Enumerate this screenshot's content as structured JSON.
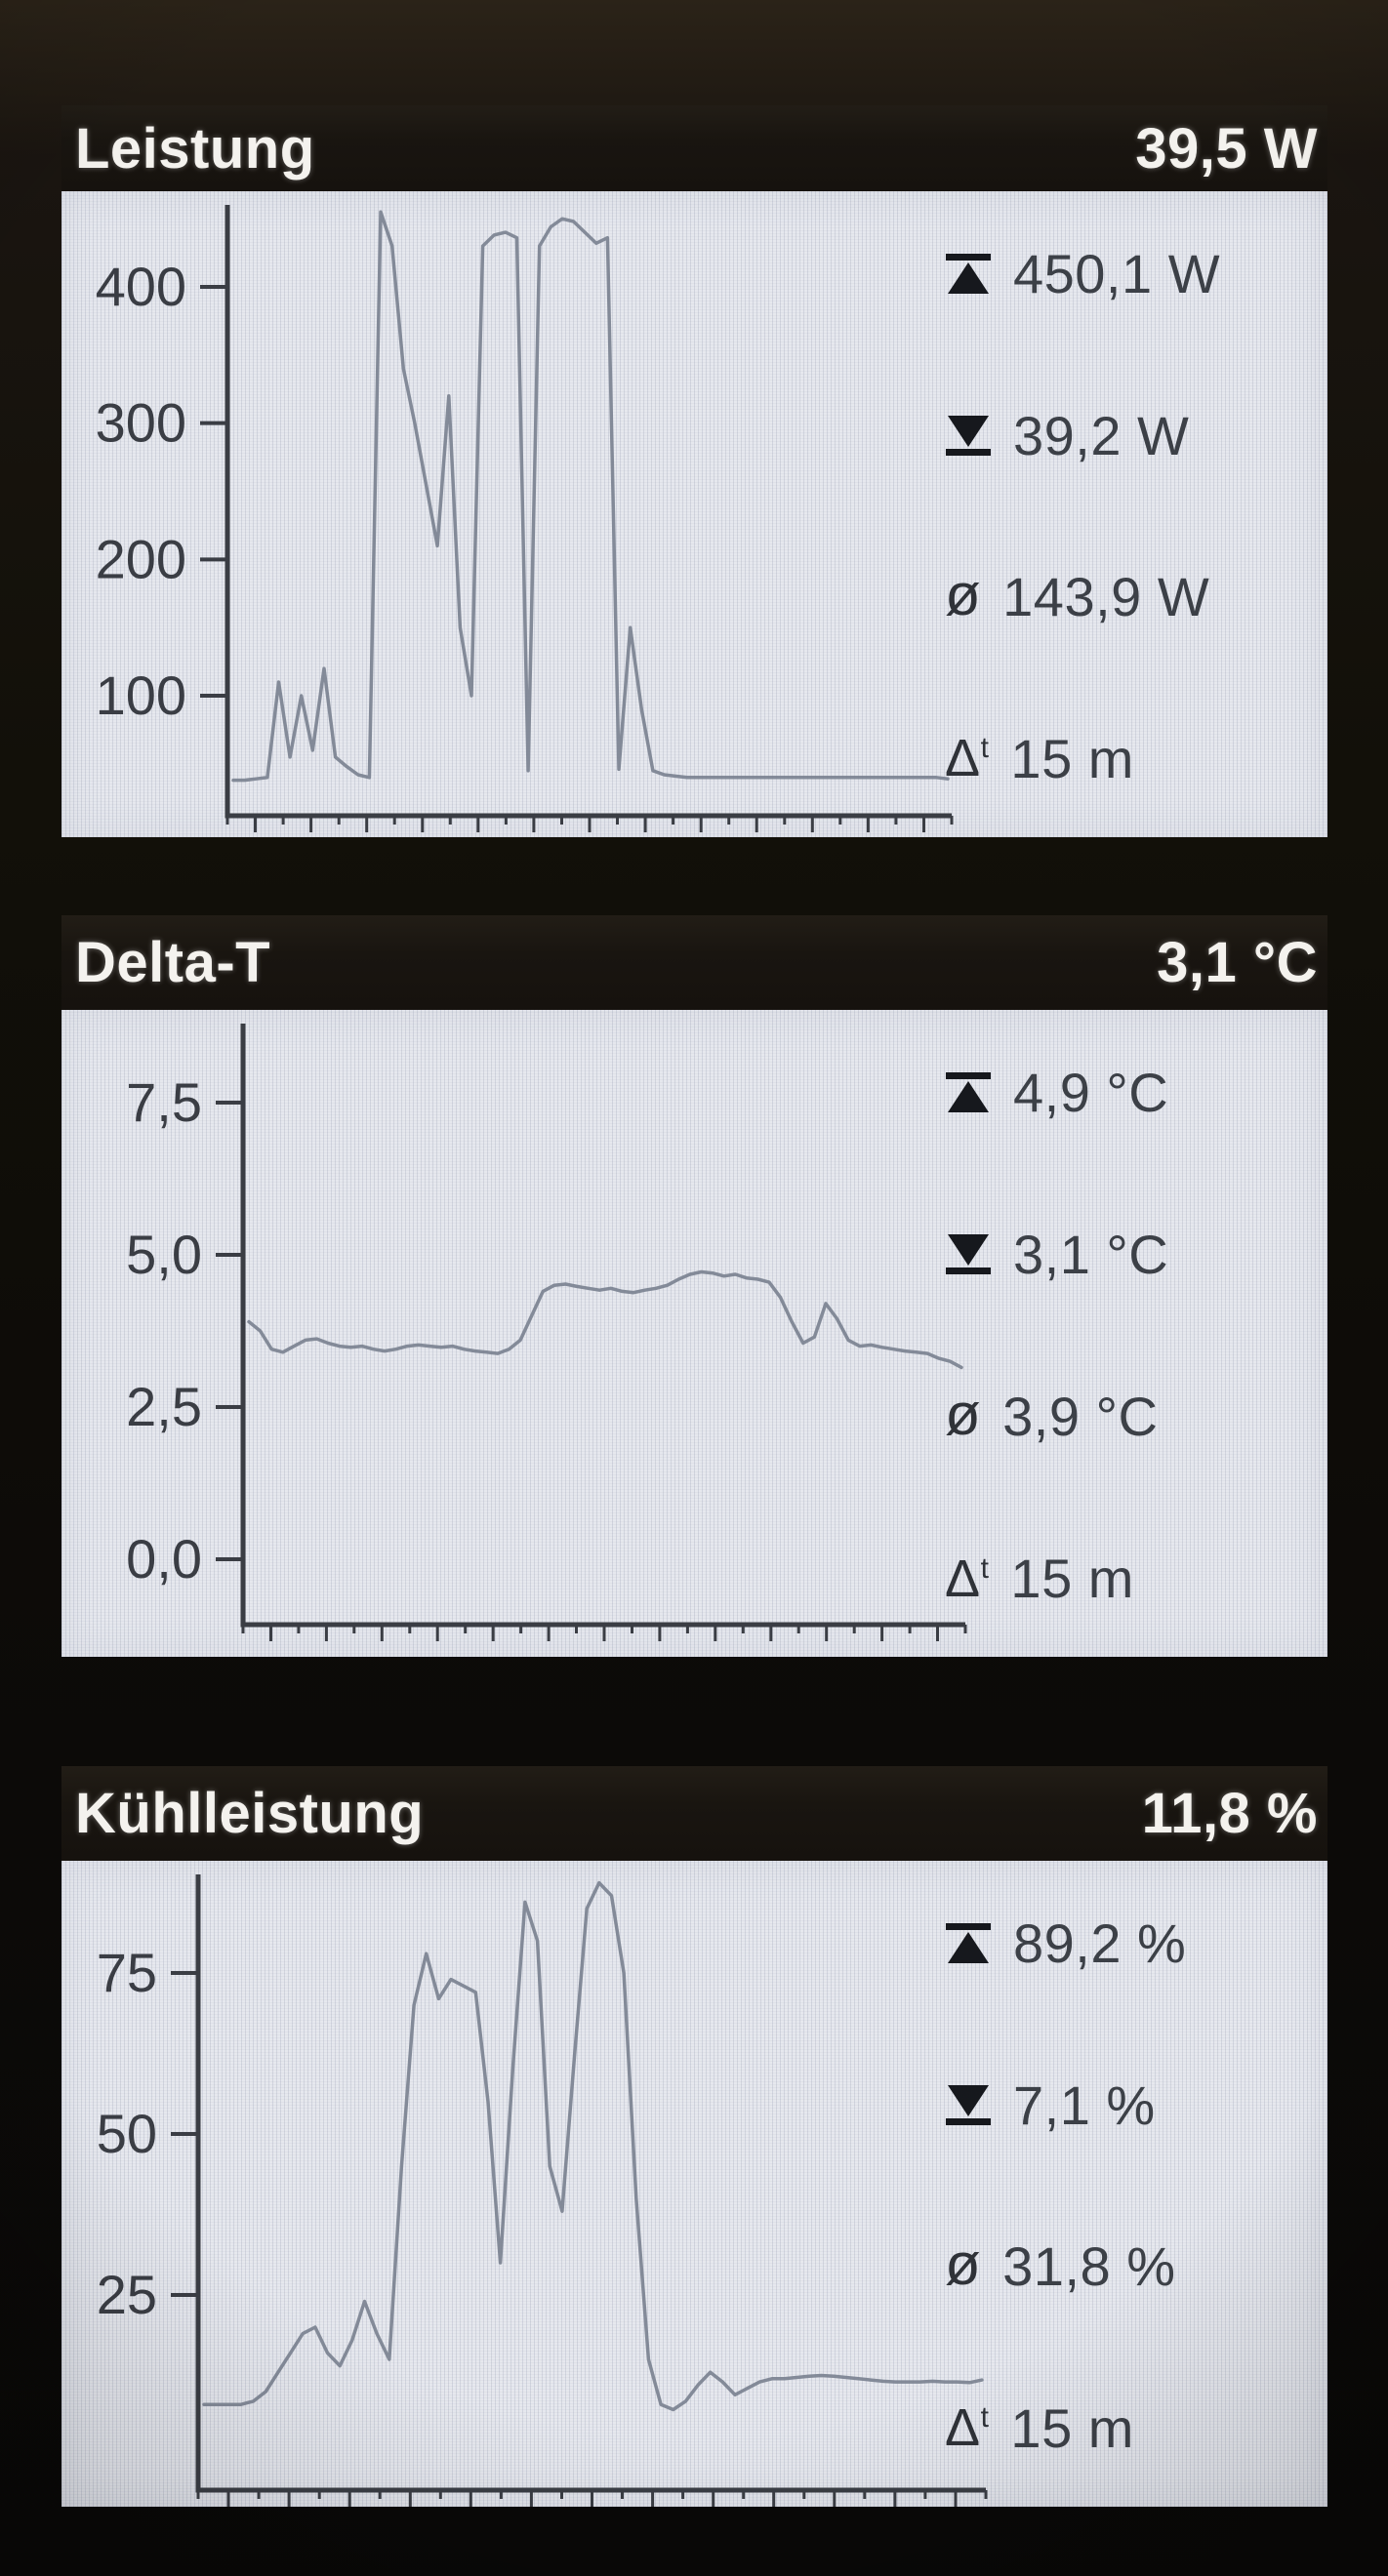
{
  "colors": {
    "page_bg": "#0d0b08",
    "header_bg": "#19150f",
    "header_text": "#f4f2ee",
    "chart_bg": "#e6e8ee",
    "axis": "#3a3d44",
    "line": "#79818f",
    "stat_text": "#3c4047"
  },
  "icons": {
    "max_icon": "bar-over-up-triangle",
    "min_icon": "down-triangle-over-bar",
    "avg_glyph": "ø",
    "delta_glyph": "Δ",
    "delta_sup": "t"
  },
  "panels": [
    {
      "title": "Leistung",
      "current": "39,5 W",
      "stats": {
        "max": "450,1 W",
        "min": "39,2 W",
        "avg": "143,9 W",
        "dt": "15 m"
      }
    },
    {
      "title": "Delta-T",
      "current": "3,1 °C",
      "stats": {
        "max": "4,9 °C",
        "min": "3,1 °C",
        "avg": "3,9 °C",
        "dt": "15 m"
      }
    },
    {
      "title": "Kühlleistung",
      "current": "11,8 %",
      "stats": {
        "max": "89,2 %",
        "min": "7,1 %",
        "avg": "31,8 %",
        "dt": "15 m"
      }
    }
  ],
  "chart_data": [
    {
      "type": "line",
      "title": "Leistung",
      "unit": "W",
      "current_value": 39.5,
      "max": 450.1,
      "min": 39.2,
      "avg": 143.9,
      "delta_t": "15 m",
      "y_ticks": [
        {
          "v": 400,
          "label": "400"
        },
        {
          "v": 300,
          "label": "300"
        },
        {
          "v": 200,
          "label": "200"
        },
        {
          "v": 100,
          "label": "100"
        }
      ],
      "ylim": [
        0,
        456
      ],
      "grid": false,
      "values": [
        38,
        38,
        39,
        40,
        110,
        55,
        100,
        60,
        120,
        55,
        48,
        42,
        40,
        455,
        430,
        340,
        300,
        255,
        210,
        320,
        150,
        100,
        430,
        438,
        440,
        436,
        45,
        430,
        444,
        450,
        448,
        440,
        432,
        436,
        46,
        150,
        90,
        45,
        42,
        41,
        40,
        40,
        40,
        40,
        40,
        40,
        40,
        40,
        40,
        40,
        40,
        40,
        40,
        40,
        40,
        40,
        40,
        40,
        40,
        40,
        40,
        40,
        40,
        39
      ]
    },
    {
      "type": "line",
      "title": "Delta-T",
      "unit": "°C",
      "current_value": 3.1,
      "max": 4.9,
      "min": 3.1,
      "avg": 3.9,
      "delta_t": "15 m",
      "y_ticks": [
        {
          "v": 7.5,
          "label": "7,5"
        },
        {
          "v": 5.0,
          "label": "5,0"
        },
        {
          "v": 2.5,
          "label": "2,5"
        },
        {
          "v": 0.0,
          "label": "0,0"
        }
      ],
      "ylim": [
        -1.0,
        8.7
      ],
      "grid": false,
      "values": [
        3.9,
        3.75,
        3.45,
        3.4,
        3.5,
        3.6,
        3.62,
        3.55,
        3.5,
        3.48,
        3.5,
        3.45,
        3.42,
        3.45,
        3.5,
        3.52,
        3.5,
        3.48,
        3.5,
        3.45,
        3.42,
        3.4,
        3.38,
        3.45,
        3.6,
        4.0,
        4.4,
        4.5,
        4.52,
        4.48,
        4.45,
        4.42,
        4.45,
        4.4,
        4.38,
        4.42,
        4.45,
        4.5,
        4.6,
        4.68,
        4.72,
        4.7,
        4.65,
        4.68,
        4.62,
        4.6,
        4.55,
        4.3,
        3.9,
        3.55,
        3.65,
        4.2,
        3.95,
        3.6,
        3.5,
        3.52,
        3.48,
        3.45,
        3.42,
        3.4,
        3.38,
        3.3,
        3.25,
        3.15
      ]
    },
    {
      "type": "line",
      "title": "Kühlleistung",
      "unit": "%",
      "current_value": 11.8,
      "max": 89.2,
      "min": 7.1,
      "avg": 31.8,
      "delta_t": "15 m",
      "y_ticks": [
        {
          "v": 75,
          "label": "75"
        },
        {
          "v": 50,
          "label": "50"
        },
        {
          "v": 25,
          "label": "25"
        }
      ],
      "ylim": [
        -5,
        90
      ],
      "grid": false,
      "values": [
        8,
        8,
        8,
        8,
        8.5,
        10,
        13,
        16,
        19,
        20,
        16,
        14,
        18,
        24,
        19,
        15,
        45,
        70,
        78,
        71,
        74,
        73,
        72,
        55,
        30,
        60,
        86,
        80,
        45,
        38,
        62,
        85,
        89,
        87,
        75,
        40,
        15,
        8,
        7.2,
        8.5,
        11,
        13,
        11.5,
        9.5,
        10.5,
        11.5,
        12,
        12,
        12.2,
        12.4,
        12.5,
        12.4,
        12.2,
        12,
        11.8,
        11.6,
        11.5,
        11.5,
        11.5,
        11.6,
        11.5,
        11.5,
        11.4,
        11.8
      ]
    }
  ]
}
